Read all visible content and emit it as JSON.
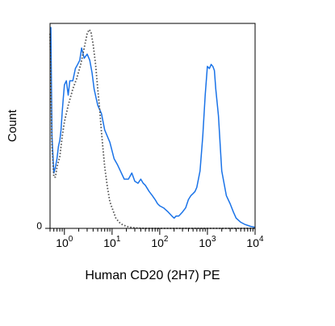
{
  "chart_data": {
    "type": "line",
    "xlabel": "Human CD20 (2H7) PE",
    "ylabel": "Count",
    "xscale": "log",
    "xlim": [
      0.5,
      10000
    ],
    "ylim": [
      0,
      100
    ],
    "grid": false,
    "legend": "none",
    "x_ticks": [
      {
        "value": 1,
        "base": "10",
        "exp": "0"
      },
      {
        "value": 10,
        "base": "10",
        "exp": "1"
      },
      {
        "value": 100,
        "base": "10",
        "exp": "2"
      },
      {
        "value": 1000,
        "base": "10",
        "exp": "3"
      },
      {
        "value": 10000,
        "base": "10",
        "exp": "4"
      }
    ],
    "y_ticks": [
      {
        "value": 0,
        "label": "0"
      }
    ],
    "series": [
      {
        "color": "#1a73e8",
        "style": "solid",
        "points": [
          [
            0.5,
            98
          ],
          [
            0.52,
            98
          ],
          [
            0.55,
            45
          ],
          [
            0.6,
            27
          ],
          [
            0.65,
            30
          ],
          [
            0.7,
            34
          ],
          [
            0.75,
            40
          ],
          [
            0.8,
            43
          ],
          [
            0.85,
            48
          ],
          [
            0.9,
            57
          ],
          [
            0.95,
            64
          ],
          [
            1.0,
            70
          ],
          [
            1.1,
            72
          ],
          [
            1.2,
            65
          ],
          [
            1.3,
            72
          ],
          [
            1.5,
            72
          ],
          [
            1.7,
            78
          ],
          [
            1.9,
            80
          ],
          [
            2.1,
            82
          ],
          [
            2.3,
            88
          ],
          [
            2.6,
            83
          ],
          [
            3.0,
            85
          ],
          [
            3.4,
            82
          ],
          [
            3.8,
            76
          ],
          [
            4.2,
            68
          ],
          [
            5,
            60
          ],
          [
            6,
            56
          ],
          [
            7,
            48
          ],
          [
            9,
            42
          ],
          [
            11,
            34
          ],
          [
            13,
            31
          ],
          [
            15,
            28
          ],
          [
            18,
            24
          ],
          [
            22,
            24
          ],
          [
            26,
            27
          ],
          [
            30,
            23
          ],
          [
            35,
            22
          ],
          [
            40,
            24
          ],
          [
            45,
            22
          ],
          [
            50,
            21
          ],
          [
            60,
            18
          ],
          [
            70,
            16
          ],
          [
            80,
            14
          ],
          [
            90,
            12
          ],
          [
            100,
            11
          ],
          [
            120,
            10
          ],
          [
            150,
            8
          ],
          [
            180,
            6
          ],
          [
            200,
            5
          ],
          [
            220,
            6
          ],
          [
            250,
            6
          ],
          [
            300,
            8
          ],
          [
            350,
            10
          ],
          [
            400,
            14
          ],
          [
            450,
            16
          ],
          [
            500,
            17
          ],
          [
            550,
            18
          ],
          [
            600,
            20
          ],
          [
            700,
            28
          ],
          [
            800,
            45
          ],
          [
            900,
            65
          ],
          [
            1000,
            79
          ],
          [
            1100,
            78
          ],
          [
            1200,
            80
          ],
          [
            1300,
            79
          ],
          [
            1400,
            77
          ],
          [
            1500,
            68
          ],
          [
            1700,
            55
          ],
          [
            2000,
            28
          ],
          [
            2500,
            16
          ],
          [
            3000,
            12
          ],
          [
            3500,
            8
          ],
          [
            4000,
            5
          ],
          [
            5000,
            3
          ],
          [
            6000,
            2
          ],
          [
            8000,
            1
          ],
          [
            10000,
            0.5
          ]
        ]
      },
      {
        "color": "#555555",
        "style": "dotted",
        "points": [
          [
            0.5,
            95
          ],
          [
            0.55,
            40
          ],
          [
            0.6,
            25
          ],
          [
            0.65,
            25
          ],
          [
            0.7,
            30
          ],
          [
            0.8,
            35
          ],
          [
            0.9,
            45
          ],
          [
            1.0,
            52
          ],
          [
            1.2,
            60
          ],
          [
            1.5,
            68
          ],
          [
            1.8,
            73
          ],
          [
            2.2,
            80
          ],
          [
            2.6,
            88
          ],
          [
            3.0,
            95
          ],
          [
            3.3,
            97
          ],
          [
            3.6,
            96
          ],
          [
            4.0,
            90
          ],
          [
            4.5,
            80
          ],
          [
            5.0,
            68
          ],
          [
            5.5,
            58
          ],
          [
            6.0,
            47
          ],
          [
            6.5,
            38
          ],
          [
            7.0,
            30
          ],
          [
            8.0,
            20
          ],
          [
            9.0,
            13
          ],
          [
            10,
            10
          ],
          [
            12,
            5
          ],
          [
            14,
            3
          ],
          [
            16,
            2
          ],
          [
            20,
            1
          ],
          [
            25,
            0.5
          ],
          [
            30,
            0.2
          ],
          [
            50,
            0
          ],
          [
            100,
            0
          ],
          [
            10000,
            0
          ]
        ]
      }
    ]
  }
}
